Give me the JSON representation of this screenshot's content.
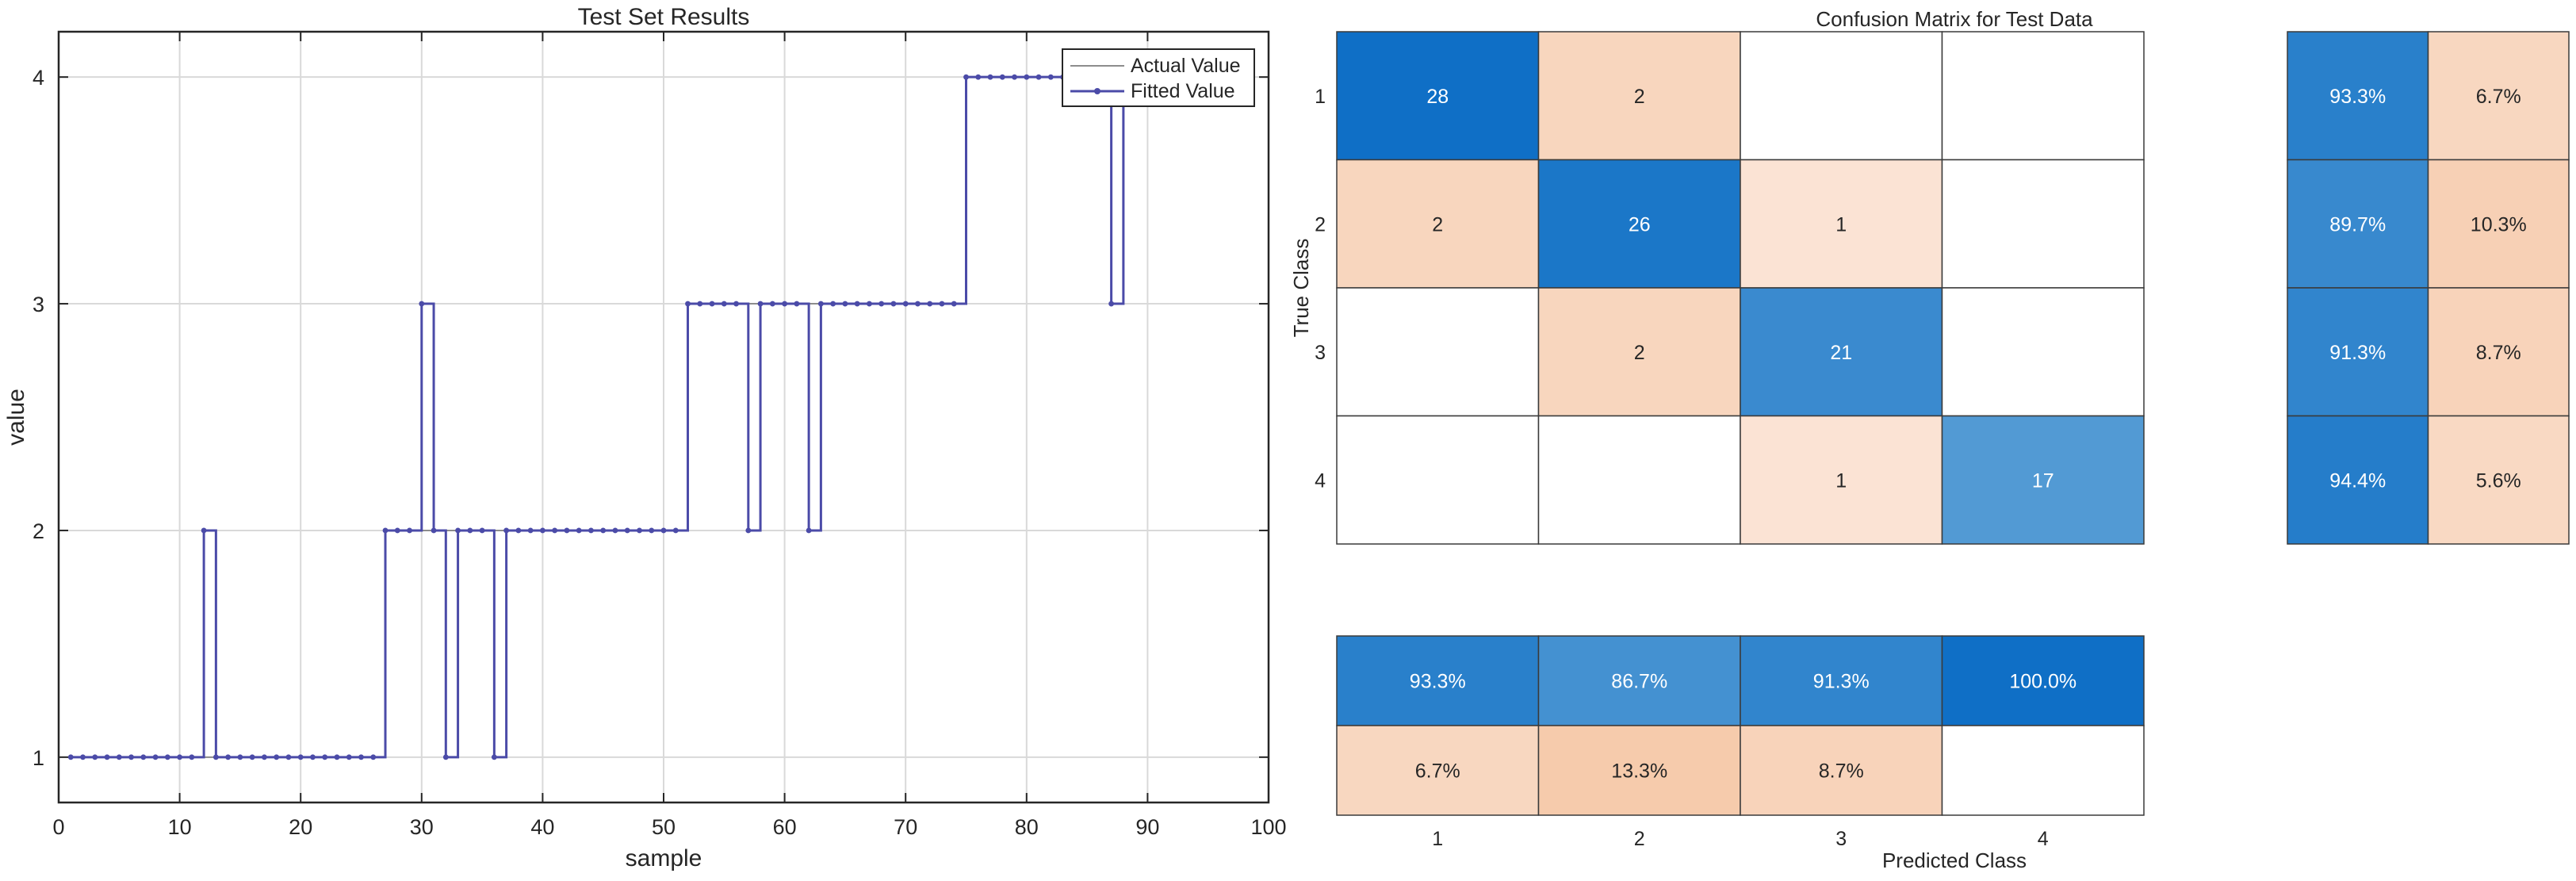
{
  "chart_data": [
    {
      "type": "line",
      "title": "Test Set Results",
      "xlabel": "sample",
      "ylabel": "value",
      "xlim": [
        0,
        100
      ],
      "ylim": [
        0.8,
        4.2
      ],
      "xticks": [
        "0",
        "10",
        "20",
        "30",
        "40",
        "50",
        "60",
        "70",
        "80",
        "90",
        "100"
      ],
      "yticks": [
        "1",
        "2",
        "3",
        "4"
      ],
      "grid": true,
      "legend_position": "top-right",
      "series": [
        {
          "name": "Actual Value",
          "color": "#8c8c8c",
          "values": [
            1,
            1,
            1,
            1,
            1,
            1,
            1,
            1,
            1,
            1,
            1,
            1,
            1,
            1,
            1,
            1,
            1,
            1,
            1,
            1,
            1,
            1,
            1,
            1,
            1,
            1,
            2,
            2,
            2,
            2,
            2,
            2,
            2,
            2,
            2,
            2,
            2,
            2,
            2,
            2,
            2,
            2,
            2,
            2,
            2,
            2,
            2,
            2,
            2,
            2,
            2,
            3,
            3,
            3,
            3,
            3,
            3,
            3,
            3,
            3,
            3,
            3,
            3,
            3,
            3,
            3,
            3,
            3,
            3,
            3,
            3,
            3,
            3,
            3,
            4,
            4,
            4,
            4,
            4,
            4,
            4,
            4,
            4,
            4,
            4,
            4,
            4,
            4
          ]
        },
        {
          "name": "Fitted Value",
          "color": "#4b4ba8",
          "values": [
            1,
            1,
            1,
            1,
            1,
            1,
            1,
            1,
            1,
            1,
            1,
            2,
            1,
            1,
            1,
            1,
            1,
            1,
            1,
            1,
            1,
            1,
            1,
            1,
            1,
            1,
            2,
            2,
            2,
            3,
            2,
            1,
            2,
            2,
            2,
            1,
            2,
            2,
            2,
            2,
            2,
            2,
            2,
            2,
            2,
            2,
            2,
            2,
            2,
            2,
            2,
            3,
            3,
            3,
            3,
            3,
            2,
            3,
            3,
            3,
            3,
            2,
            3,
            3,
            3,
            3,
            3,
            3,
            3,
            3,
            3,
            3,
            3,
            3,
            4,
            4,
            4,
            4,
            4,
            4,
            4,
            4,
            4,
            4,
            4,
            4,
            3,
            4
          ]
        }
      ]
    },
    {
      "type": "heatmap",
      "title": "Confusion Matrix for Test Data",
      "xlabel": "Predicted Class",
      "ylabel": "True Class",
      "classes": [
        "1",
        "2",
        "3",
        "4"
      ],
      "matrix": [
        [
          28,
          2,
          0,
          0
        ],
        [
          2,
          26,
          1,
          0
        ],
        [
          0,
          2,
          21,
          0
        ],
        [
          0,
          0,
          1,
          17
        ]
      ],
      "matrix_labels": [
        [
          "28",
          "2",
          "",
          ""
        ],
        [
          "2",
          "26",
          "1",
          ""
        ],
        [
          "",
          "2",
          "21",
          ""
        ],
        [
          "",
          "",
          "1",
          "17"
        ]
      ],
      "row_summary": [
        [
          "93.3%",
          "6.7%"
        ],
        [
          "89.7%",
          "10.3%"
        ],
        [
          "91.3%",
          "8.7%"
        ],
        [
          "94.4%",
          "5.6%"
        ]
      ],
      "column_summary": [
        [
          "93.3%",
          "86.7%",
          "91.3%",
          "100.0%"
        ],
        [
          "6.7%",
          "13.3%",
          "8.7%",
          ""
        ]
      ],
      "colors": {
        "diag_low": "#5ea2d6",
        "diag_high": "#0f6fc6",
        "off_low": "#fbe3d4",
        "off_high": "#f5c8a7",
        "empty": "#ffffff",
        "light_text": "#ffffff",
        "dark_text": "#262626"
      }
    }
  ]
}
